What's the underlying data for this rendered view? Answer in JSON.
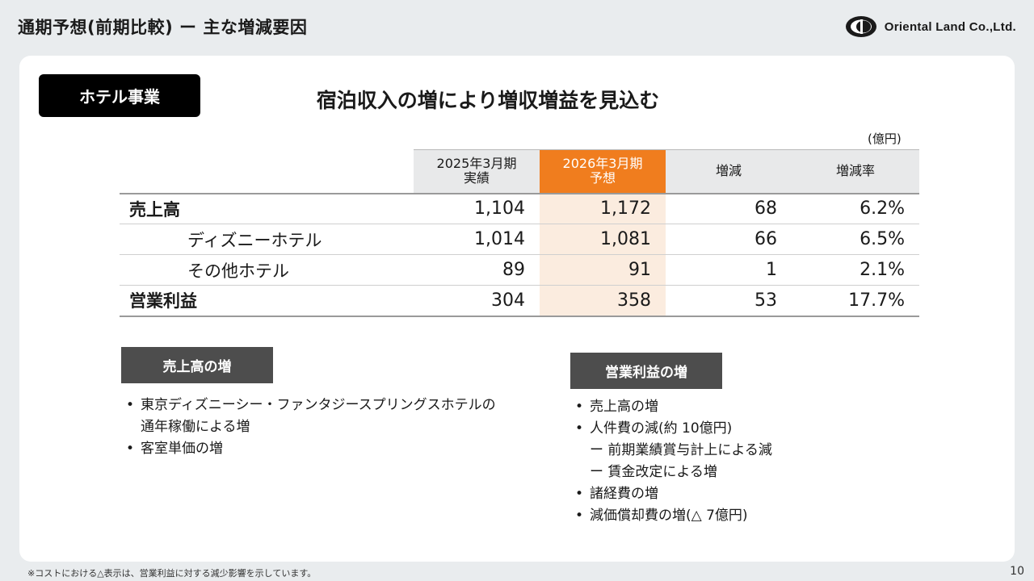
{
  "header": {
    "title": "通期予想(前期比較) ー 主な増減要因",
    "company": "Oriental Land Co.,Ltd."
  },
  "segment": "ホテル事業",
  "headline": "宿泊収入の増により増収増益を見込む",
  "unit": "(億円)",
  "table": {
    "columns": [
      {
        "line1": "2025年3月期",
        "line2": "実績"
      },
      {
        "line1": "2026年3月期",
        "line2": "予想"
      },
      {
        "line1": "増減",
        "line2": ""
      },
      {
        "line1": "増減率",
        "line2": ""
      }
    ],
    "rows": [
      {
        "label": "売上高",
        "values": [
          "1,104",
          "1,172",
          "68",
          "6.2%"
        ]
      },
      {
        "label": "ディズニーホテル",
        "values": [
          "1,014",
          "1,081",
          "66",
          "6.5%"
        ]
      },
      {
        "label": "その他ホテル",
        "values": [
          "89",
          "91",
          "1",
          "2.1%"
        ]
      },
      {
        "label": "営業利益",
        "values": [
          "304",
          "358",
          "53",
          "17.7%"
        ]
      }
    ]
  },
  "sales_section": {
    "title": "売上高の増",
    "items": [
      "東京ディズニーシー・ファンタジースプリングスホテルの",
      "通年稼働による増",
      "客室単価の増"
    ]
  },
  "profit_section": {
    "title": "営業利益の増",
    "items": [
      "売上高の増",
      "人件費の減(約 10億円)",
      "ー 前期業績賞与計上による減",
      "ー 賃金改定による増",
      "諸経費の増",
      "減価償却費の増(△ 7億円)"
    ]
  },
  "footnote": "※コストにおける△表示は、営業利益に対する減少影響を示しています。",
  "page_number": "10"
}
